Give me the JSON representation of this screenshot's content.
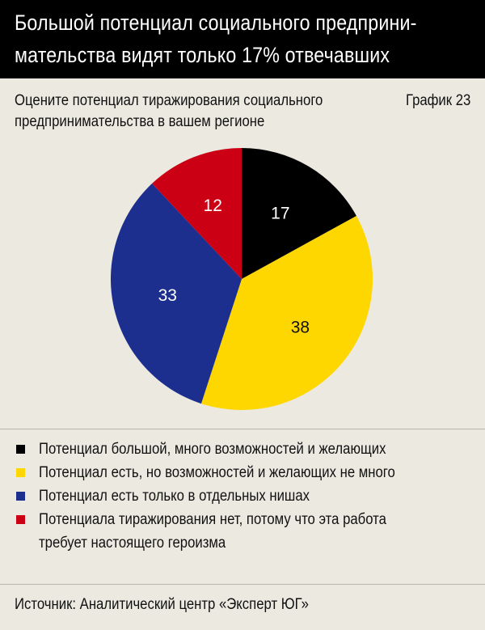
{
  "header": {
    "title_line1": "Большой потенциал социального предприни-",
    "title_line2": "мательства видят только 17% отвечавших"
  },
  "question": {
    "line1": "Оцените потенциал тиражирования социального",
    "line2": "предпринимательства в вашем регионе"
  },
  "graph_label": "График 23",
  "chart_data": {
    "type": "pie",
    "title": "Оцените потенциал тиражирования социального предпринимательства в вашем регионе",
    "slices": [
      {
        "label": "Потенциал большой, много возможностей и желающих",
        "value": 17,
        "color": "#000000",
        "text_color": "#ffffff"
      },
      {
        "label": "Потенциал есть, но возможностей и желающих не много",
        "value": 38,
        "color": "#ffd700",
        "text_color": "#111111"
      },
      {
        "label": "Потенциал есть только в отдельных нишах",
        "value": 33,
        "color": "#1c2f8f",
        "text_color": "#ffffff"
      },
      {
        "label": "Потенциала тиражирования нет, потому что эта работа требует настоящего героизма",
        "value": 12,
        "color": "#cc0014",
        "text_color": "#ffffff"
      }
    ]
  },
  "legend": [
    {
      "line1": "Потенциал большой, много возможностей и желающих",
      "line2": "",
      "color": "#000000"
    },
    {
      "line1": "Потенциал есть, но возможностей и желающих не много",
      "line2": "",
      "color": "#ffd700"
    },
    {
      "line1": "Потенциал есть только в отдельных нишах",
      "line2": "",
      "color": "#1c2f8f"
    },
    {
      "line1": "Потенциала тиражирования нет, потому что эта работа",
      "line2": "требует настоящего героизма",
      "color": "#cc0014"
    }
  ],
  "source": "Источник: Аналитический центр «Эксперт ЮГ»"
}
